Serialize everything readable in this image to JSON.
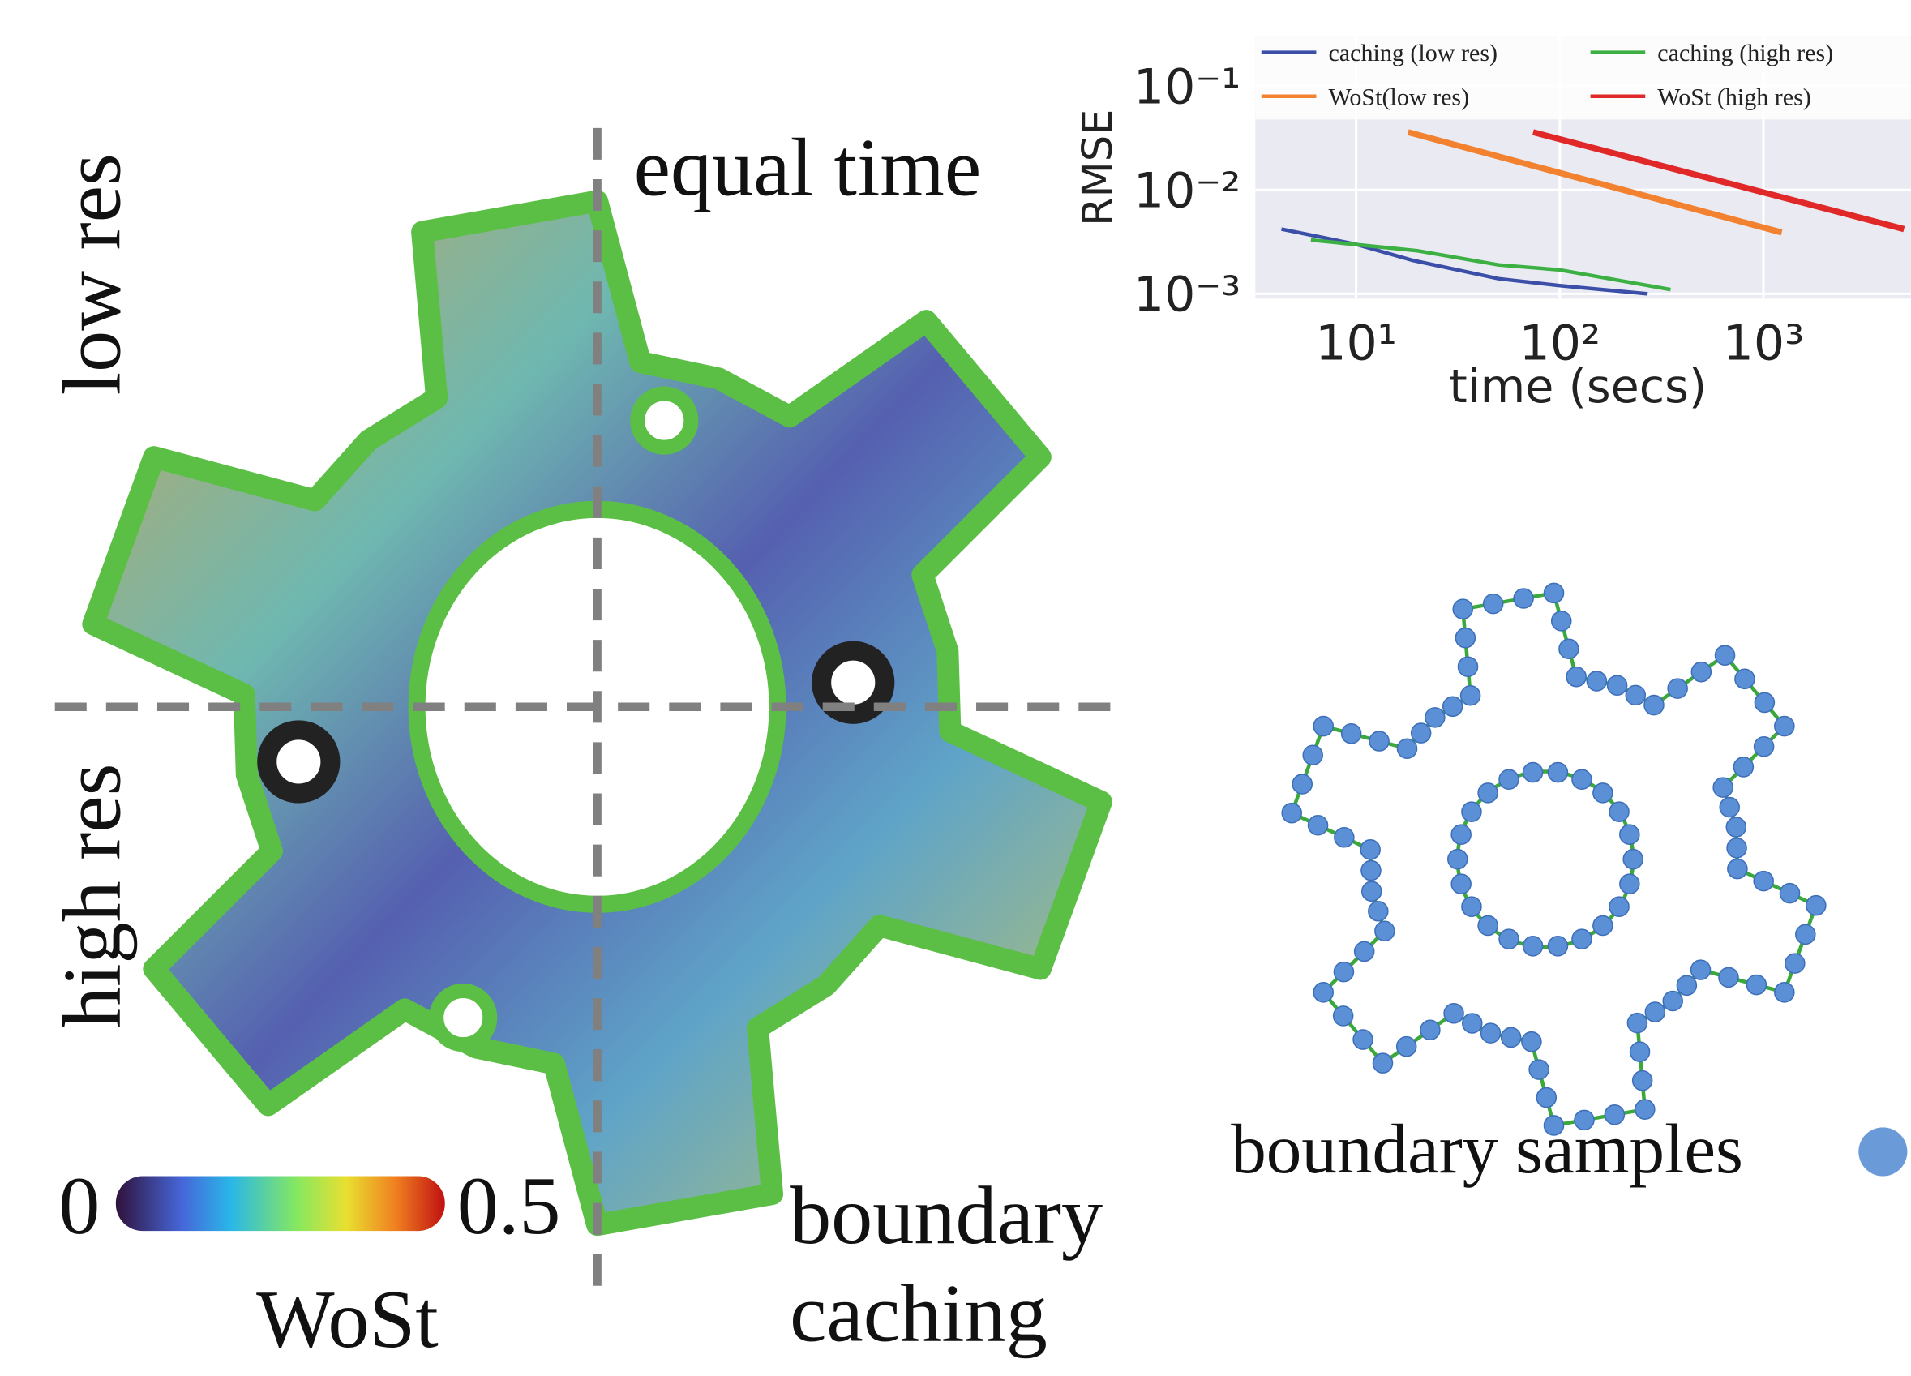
{
  "labels": {
    "low_res": "low res",
    "high_res": "high res",
    "equal_time": "equal time",
    "boundary_caching": [
      "boundary",
      "caching"
    ],
    "boundary_samples": "boundary samples"
  },
  "colorbar": {
    "min": 0,
    "max": 0.5,
    "label": "WoSt"
  },
  "chart_data": {
    "type": "line",
    "xlabel": "time (secs)",
    "ylabel": "RMSE",
    "log_x": true,
    "log_y": true,
    "grid": true,
    "legend": "top",
    "xlim": [
      3.2,
      5300
    ],
    "ylim": [
      0.0009,
      0.3
    ],
    "xticks": [
      {
        "value": 10,
        "label": "10¹"
      },
      {
        "value": 100,
        "label": "10²"
      },
      {
        "value": 1000,
        "label": "10³"
      }
    ],
    "yticks": [
      {
        "value": 0.1,
        "label": "10⁻¹"
      },
      {
        "value": 0.01,
        "label": "10⁻²"
      },
      {
        "value": 0.001,
        "label": "10⁻³"
      }
    ],
    "series": [
      {
        "name": "caching (low res)",
        "color": "#3b4fa8",
        "x": [
          4.3,
          10,
          19,
          50,
          100,
          270
        ],
        "values": [
          0.0042,
          0.003,
          0.0021,
          0.0014,
          0.0012,
          0.001
        ]
      },
      {
        "name": "caching (high res)",
        "color": "#3cb043",
        "x": [
          6,
          20,
          50,
          100,
          350
        ],
        "values": [
          0.0033,
          0.0026,
          0.0019,
          0.0017,
          0.0011
        ]
      },
      {
        "name": "WoSt(low res)",
        "color": "#f28130",
        "x": [
          18,
          1230
        ],
        "values": [
          0.036,
          0.0039
        ]
      },
      {
        "name": "WoSt (high res)",
        "color": "#e02828",
        "x": [
          74,
          4900
        ],
        "values": [
          0.036,
          0.0042
        ]
      }
    ]
  }
}
